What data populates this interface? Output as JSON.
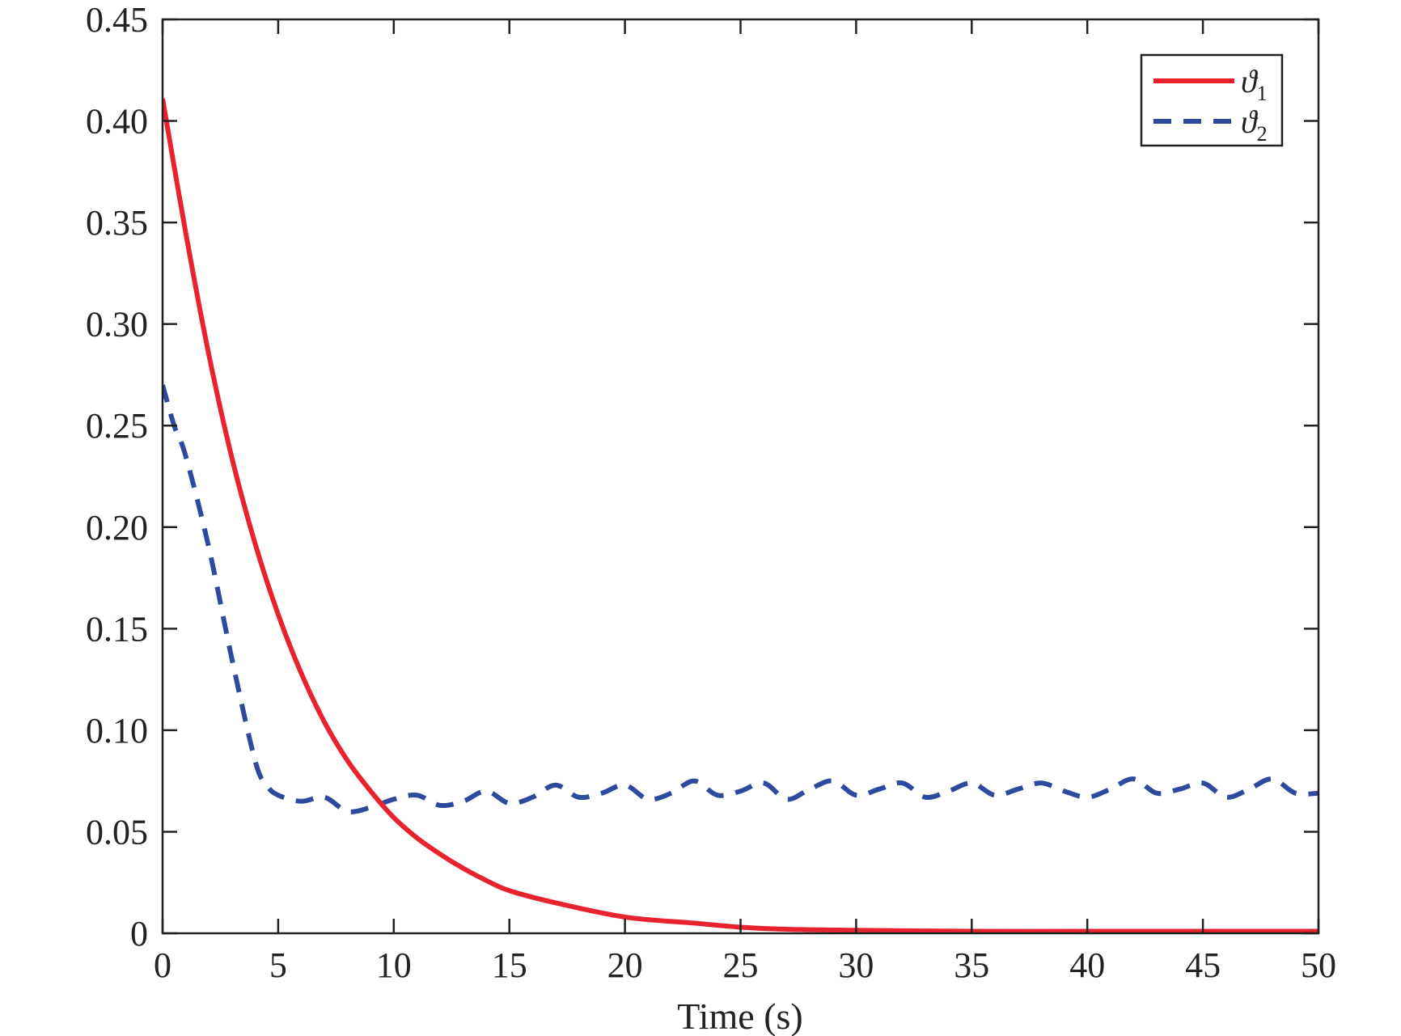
{
  "chart_data": {
    "type": "line",
    "title": "",
    "xlabel": "Time (s)",
    "ylabel": "",
    "xlim": [
      0,
      50
    ],
    "ylim": [
      0,
      0.45
    ],
    "xticks": [
      0,
      5,
      10,
      15,
      20,
      25,
      30,
      35,
      40,
      45,
      50
    ],
    "xtick_labels": [
      "0",
      "5",
      "10",
      "15",
      "20",
      "25",
      "30",
      "35",
      "40",
      "45",
      "50"
    ],
    "yticks": [
      0,
      0.05,
      0.1,
      0.15,
      0.2,
      0.25,
      0.3,
      0.35,
      0.4,
      0.45
    ],
    "ytick_labels": [
      "0",
      "0.05",
      "0.10",
      "0.15",
      "0.20",
      "0.25",
      "0.30",
      "0.35",
      "0.40",
      "0.45"
    ],
    "grid": false,
    "legend_position": "top-right",
    "series": [
      {
        "name": "ϑ1",
        "name_base": "ϑ",
        "name_sub": "1",
        "color": "#e8232d",
        "style": "solid",
        "x": [
          0,
          1,
          2,
          3,
          4,
          5,
          6,
          7,
          8,
          9,
          10,
          11,
          12,
          13,
          14,
          15,
          17,
          20,
          23,
          25,
          27,
          30,
          35,
          40,
          45,
          50
        ],
        "y": [
          0.411,
          0.345,
          0.285,
          0.234,
          0.192,
          0.157,
          0.128,
          0.104,
          0.085,
          0.07,
          0.057,
          0.047,
          0.039,
          0.032,
          0.026,
          0.021,
          0.015,
          0.008,
          0.005,
          0.003,
          0.002,
          0.0015,
          0.001,
          0.001,
          0.001,
          0.001
        ]
      },
      {
        "name": "ϑ2",
        "name_base": "ϑ",
        "name_sub": "2",
        "color": "#2e4a9e",
        "style": "dashed",
        "x": [
          0,
          0.5,
          1,
          2,
          3,
          4,
          4.5,
          5,
          6,
          7,
          8,
          9,
          10,
          11,
          12,
          13,
          14,
          15,
          16,
          17,
          18,
          19,
          20,
          21,
          22,
          23,
          24,
          25,
          26,
          27,
          28,
          29,
          30,
          31,
          32,
          33,
          34,
          35,
          36,
          37,
          38,
          39,
          40,
          41,
          42,
          43,
          44,
          45,
          46,
          47,
          48,
          49,
          50
        ],
        "y": [
          0.27,
          0.25,
          0.235,
          0.19,
          0.135,
          0.085,
          0.073,
          0.068,
          0.065,
          0.067,
          0.06,
          0.062,
          0.066,
          0.068,
          0.063,
          0.065,
          0.07,
          0.064,
          0.067,
          0.073,
          0.067,
          0.069,
          0.073,
          0.066,
          0.069,
          0.075,
          0.068,
          0.07,
          0.074,
          0.066,
          0.071,
          0.075,
          0.068,
          0.071,
          0.074,
          0.067,
          0.07,
          0.074,
          0.068,
          0.071,
          0.074,
          0.07,
          0.067,
          0.071,
          0.076,
          0.069,
          0.071,
          0.074,
          0.067,
          0.071,
          0.076,
          0.069,
          0.069
        ]
      }
    ]
  }
}
